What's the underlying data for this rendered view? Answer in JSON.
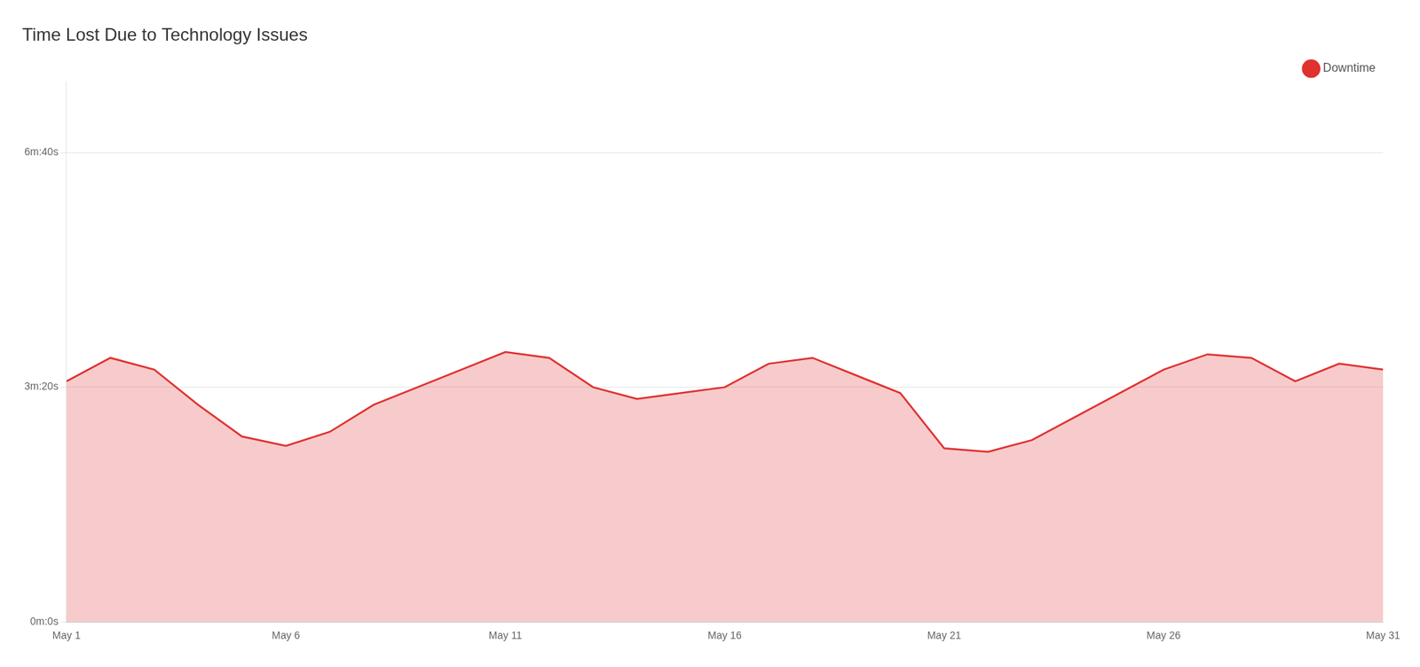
{
  "chart_data": {
    "type": "area",
    "title": "Time Lost Due to Technology Issues",
    "x": [
      1,
      2,
      3,
      4,
      5,
      6,
      7,
      8,
      9,
      10,
      11,
      12,
      13,
      14,
      15,
      16,
      17,
      18,
      19,
      20,
      21,
      22,
      23,
      24,
      25,
      26,
      27,
      28,
      29,
      30,
      31
    ],
    "series": [
      {
        "name": "Downtime",
        "color": "#e03030",
        "values": [
          205,
          225,
          215,
          185,
          158,
          150,
          162,
          185,
          200,
          215,
          230,
          225,
          200,
          190,
          195,
          200,
          220,
          225,
          210,
          195,
          148,
          145,
          155,
          175,
          195,
          215,
          228,
          225,
          205,
          220,
          215
        ]
      }
    ],
    "xlim": [
      1,
      31
    ],
    "xticks": [
      {
        "value": 1,
        "label": "May 1"
      },
      {
        "value": 6,
        "label": "May 6"
      },
      {
        "value": 11,
        "label": "May 11"
      },
      {
        "value": 16,
        "label": "May 16"
      },
      {
        "value": 21,
        "label": "May 21"
      },
      {
        "value": 26,
        "label": "May 26"
      },
      {
        "value": 31,
        "label": "May 31"
      }
    ],
    "ylim": [
      0,
      460
    ],
    "yticks": [
      {
        "value": 0,
        "label": "0m:0s"
      },
      {
        "value": 200,
        "label": "3m:20s"
      },
      {
        "value": 400,
        "label": "6m:40s"
      }
    ],
    "grid": "y",
    "legend": "upper right"
  }
}
